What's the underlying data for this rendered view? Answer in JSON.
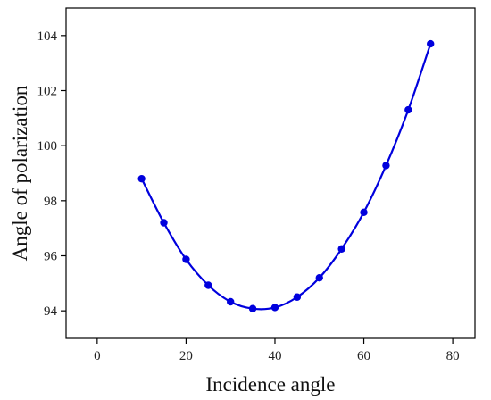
{
  "chart_data": {
    "type": "line",
    "title": "",
    "xlabel": "Incidence angle",
    "ylabel": "Angle of polarization",
    "xlim": [
      -7,
      85
    ],
    "ylim": [
      93.0,
      105.0
    ],
    "xticks": [
      0,
      20,
      40,
      60,
      80
    ],
    "yticks": [
      94,
      96,
      98,
      100,
      102,
      104
    ],
    "xtick_labels": [
      "0",
      "20",
      "40",
      "60",
      "80"
    ],
    "ytick_labels": [
      "94",
      "96",
      "98",
      "100",
      102,
      "104"
    ],
    "grid": false,
    "legend": "none",
    "series": [
      {
        "color": "#0000dd",
        "marker": "circle",
        "x": [
          10,
          15,
          20,
          25,
          30,
          35,
          40,
          45,
          50,
          55,
          60,
          65,
          70,
          75
        ],
        "y": [
          98.8,
          97.2,
          95.87,
          94.93,
          94.33,
          94.08,
          94.12,
          94.5,
          95.2,
          96.25,
          97.58,
          99.28,
          101.3,
          103.7
        ]
      }
    ]
  }
}
